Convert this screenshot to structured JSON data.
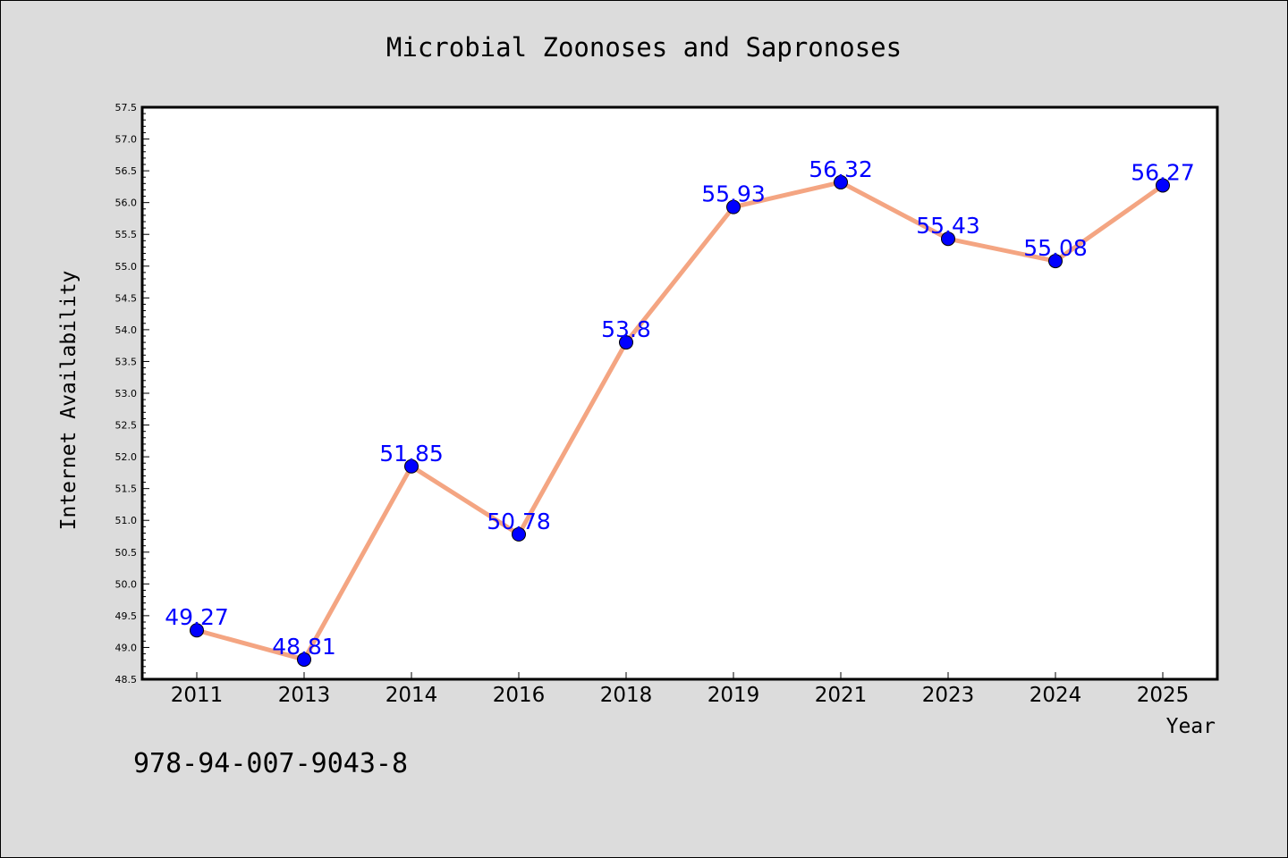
{
  "chart_data": {
    "type": "line",
    "title": "Microbial Zoonoses and Sapronoses",
    "xlabel": "Year",
    "ylabel": "Internet Availability",
    "categories": [
      "2011",
      "2013",
      "2014",
      "2016",
      "2018",
      "2019",
      "2021",
      "2023",
      "2024",
      "2025"
    ],
    "values": [
      49.27,
      48.81,
      51.85,
      50.78,
      53.8,
      55.93,
      56.32,
      55.43,
      55.08,
      56.27
    ],
    "data_labels": [
      "49.27",
      "48.81",
      "51.85",
      "50.78",
      "53.8",
      "55.93",
      "56.32",
      "55.43",
      "55.08",
      "56.27"
    ],
    "ylim": [
      48.5,
      57.5
    ],
    "yticks": [
      "48.5",
      "49.0",
      "49.5",
      "50.0",
      "50.5",
      "51.0",
      "51.5",
      "52.0",
      "52.5",
      "53.0",
      "53.5",
      "54.0",
      "54.5",
      "55.0",
      "55.5",
      "56.0",
      "56.5",
      "57.0",
      "57.5"
    ],
    "grid": false,
    "line_color": "#f4a582",
    "marker_color": "#0000ff",
    "label_color": "#0000ff"
  },
  "footer": {
    "isbn": "978-94-007-9043-8"
  }
}
